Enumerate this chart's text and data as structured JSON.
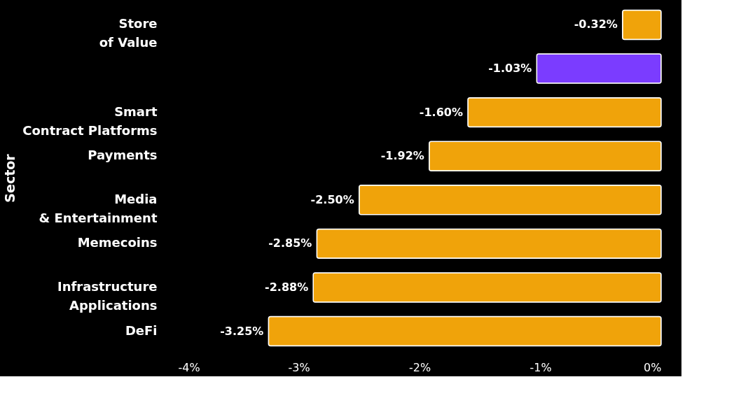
{
  "chart_data": {
    "type": "bar",
    "orientation": "horizontal",
    "ylabel": "Sector",
    "categories": [
      "Store\nof Value",
      null,
      "Smart\nContract Platforms",
      "Payments",
      "Media\n& Entertainment",
      "Memecoins",
      "Infrastructure\nApplications",
      "DeFi"
    ],
    "values": [
      -0.32,
      -1.03,
      -1.6,
      -1.92,
      -2.5,
      -2.85,
      -2.88,
      -3.25
    ],
    "colors": [
      "#f0a30a",
      "#7b3cff",
      "#f0a30a",
      "#f0a30a",
      "#f0a30a",
      "#f0a30a",
      "#f0a30a",
      "#f0a30a"
    ],
    "value_labels": [
      "-0.32%",
      "-1.03%",
      "-1.60%",
      "-1.92%",
      "-2.50%",
      "-2.85%",
      "-2.88%",
      "-3.25%"
    ],
    "xlim": [
      -4,
      0
    ],
    "xticks": [
      {
        "value": -4,
        "label": "-4%"
      },
      {
        "value": -3,
        "label": "-3%"
      },
      {
        "value": -2,
        "label": "-2%"
      },
      {
        "value": -1,
        "label": "-1%"
      },
      {
        "value": 0,
        "label": "0%"
      }
    ],
    "grid": false
  }
}
